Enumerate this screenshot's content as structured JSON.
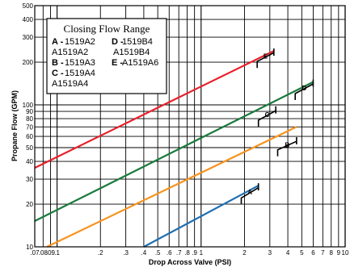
{
  "chart_data": {
    "type": "line",
    "title": "",
    "xlabel": "Drop Across Valve (PSI)",
    "ylabel": "Propane Flow (GPM)",
    "x_scale": "log",
    "y_scale": "log",
    "xlim": [
      0.07,
      10
    ],
    "ylim": [
      10,
      500
    ],
    "grid": true,
    "x_ticks": [
      {
        "v": 0.07,
        "label": ".07"
      },
      {
        "v": 0.08,
        "label": ".08"
      },
      {
        "v": 0.09,
        "label": ".09"
      },
      {
        "v": 0.1,
        "label": ".1"
      },
      {
        "v": 0.2,
        "label": ".2"
      },
      {
        "v": 0.3,
        "label": ".3"
      },
      {
        "v": 0.4,
        "label": ".4"
      },
      {
        "v": 0.5,
        "label": ".5"
      },
      {
        "v": 0.6,
        "label": ".6"
      },
      {
        "v": 0.7,
        "label": ".7"
      },
      {
        "v": 0.8,
        "label": ".8"
      },
      {
        "v": 0.9,
        "label": ".9"
      },
      {
        "v": 1,
        "label": "1"
      },
      {
        "v": 2,
        "label": "2"
      },
      {
        "v": 3,
        "label": "3"
      },
      {
        "v": 4,
        "label": "4"
      },
      {
        "v": 5,
        "label": "5"
      },
      {
        "v": 6,
        "label": "6"
      },
      {
        "v": 7,
        "label": "7"
      },
      {
        "v": 8,
        "label": "8"
      },
      {
        "v": 9,
        "label": "9"
      },
      {
        "v": 10,
        "label": "10"
      }
    ],
    "y_ticks": [
      {
        "v": 10,
        "label": "10"
      },
      {
        "v": 20,
        "label": "20"
      },
      {
        "v": 30,
        "label": "30"
      },
      {
        "v": 40,
        "label": "40"
      },
      {
        "v": 50,
        "label": "50"
      },
      {
        "v": 60,
        "label": "60"
      },
      {
        "v": 70,
        "label": "70"
      },
      {
        "v": 80,
        "label": "80"
      },
      {
        "v": 90,
        "label": "90"
      },
      {
        "v": 100,
        "label": "100"
      },
      {
        "v": 200,
        "label": "200"
      },
      {
        "v": 300,
        "label": "300"
      },
      {
        "v": 400,
        "label": "400"
      },
      {
        "v": 500,
        "label": "500"
      }
    ],
    "series": [
      {
        "name": "E",
        "color": "#e8202a",
        "x": [
          0.07,
          3.2
        ],
        "y": [
          36,
          240
        ],
        "bracket": {
          "x": [
            2.45,
            3.2
          ],
          "y": [
            197,
            240
          ]
        }
      },
      {
        "name": "D",
        "color": "#1a7a3c",
        "x": [
          0.07,
          6.0
        ],
        "y": [
          15.2,
          145
        ],
        "bracket": {
          "x": [
            4.5,
            6.0
          ],
          "y": [
            117,
            145
          ]
        }
      },
      {
        "name": "C",
        "color": "#1a7a3c",
        "x": [
          0.07,
          6.0
        ],
        "y": [
          15.2,
          145
        ],
        "bracket": {
          "x": [
            2.5,
            3.3
          ],
          "y": [
            76,
            94
          ]
        }
      },
      {
        "name": "B",
        "color": "#f7931e",
        "x": [
          0.085,
          4.6
        ],
        "y": [
          10,
          70
        ],
        "bracket": {
          "x": [
            3.4,
            4.6
          ],
          "y": [
            47,
            57
          ]
        }
      },
      {
        "name": "A",
        "color": "#1f6fb2",
        "x": [
          0.4,
          2.5
        ],
        "y": [
          10,
          27
        ],
        "bracket": {
          "x": [
            1.9,
            2.5
          ],
          "y": [
            21.5,
            27
          ]
        }
      }
    ],
    "legend": {
      "placement": "top-left",
      "title": "Closing Flow Range",
      "entries": [
        {
          "key": "A -",
          "lines": [
            "1519A2",
            "A1519A2"
          ]
        },
        {
          "key": "B -",
          "lines": [
            "1519A3"
          ]
        },
        {
          "key": "C -",
          "lines": [
            "1519A4",
            "A1519A4"
          ]
        },
        {
          "key": "D -",
          "lines": [
            "1519B4",
            "A1519B4"
          ]
        },
        {
          "key": "E -",
          "lines": [
            "A1519A6"
          ]
        }
      ]
    }
  }
}
